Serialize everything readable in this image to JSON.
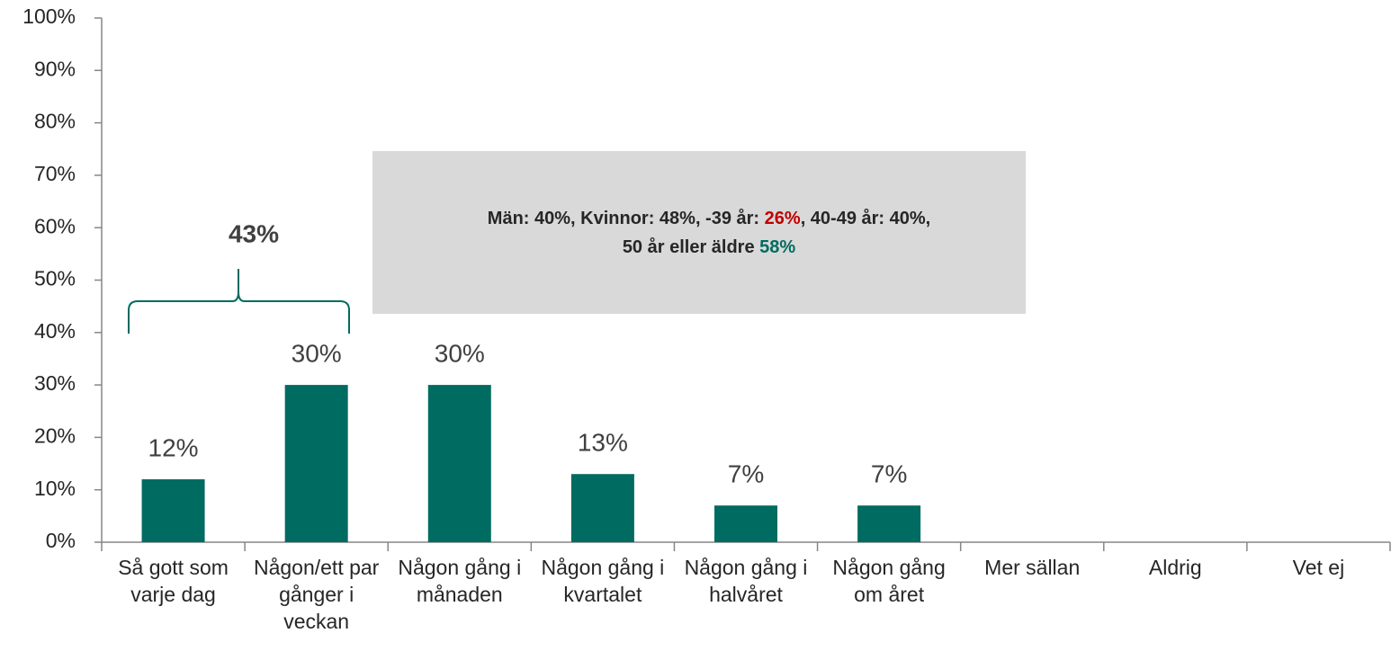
{
  "chart_data": {
    "type": "bar",
    "categories": [
      "Så gott som varje dag",
      "Någon/ett par gånger i veckan",
      "Någon gång i månaden",
      "Någon gång i kvartalet",
      "Någon gång i halvåret",
      "Någon gång om året",
      "Mer sällan",
      "Aldrig",
      "Vet ej"
    ],
    "values": [
      12,
      30,
      30,
      13,
      7,
      7,
      null,
      null,
      null
    ],
    "value_labels": [
      "12%",
      "30%",
      "30%",
      "13%",
      "7%",
      "7%",
      null,
      null,
      null
    ],
    "color": "#006b60",
    "ylim": [
      0,
      100
    ],
    "yticks": [
      {
        "value": 0,
        "label": "0%"
      },
      {
        "value": 10,
        "label": "10%"
      },
      {
        "value": 20,
        "label": "20%"
      },
      {
        "value": 30,
        "label": "30%"
      },
      {
        "value": 40,
        "label": "40%"
      },
      {
        "value": 50,
        "label": "50%"
      },
      {
        "value": 60,
        "label": "60%"
      },
      {
        "value": 70,
        "label": "70%"
      },
      {
        "value": 80,
        "label": "80%"
      },
      {
        "value": 90,
        "label": "90%"
      },
      {
        "value": 100,
        "label": "100%"
      }
    ],
    "grid": false,
    "brace_label": "43%",
    "box_lines": [
      [
        {
          "text": "Män: 40%, Kvinnor: 48%, -39 år: ",
          "color": "#262626"
        },
        {
          "text": "26%",
          "color": "#c00000"
        },
        {
          "text": ", 40-49 år: 40%,",
          "color": "#262626"
        }
      ],
      [
        {
          "text": "50 år eller äldre ",
          "color": "#262626"
        },
        {
          "text": "58%",
          "color": "#006b60"
        }
      ]
    ]
  }
}
